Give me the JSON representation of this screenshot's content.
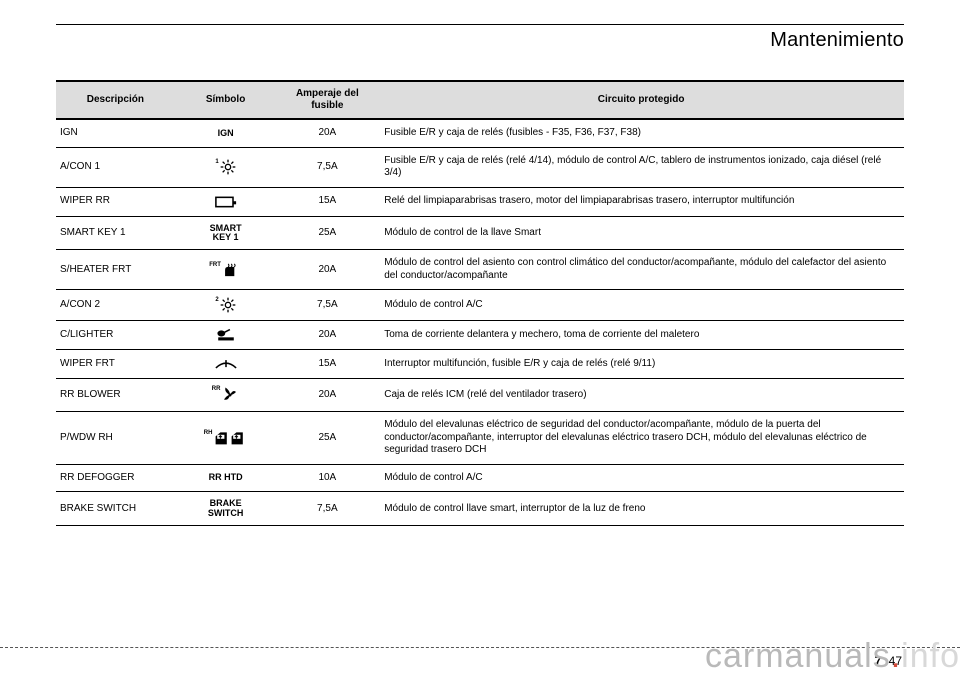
{
  "section_title": "Mantenimiento",
  "table": {
    "headers": {
      "desc": "Descripción",
      "sym": "Símbolo",
      "amp": "Amperaje del fusible",
      "circ": "Circuito protegido"
    },
    "rows": [
      {
        "desc": "IGN",
        "sym_type": "text",
        "sym": "IGN",
        "amp": "20A",
        "circ": "Fusible E/R y caja de relés (fusibles - F35, F36, F37, F38)"
      },
      {
        "desc": "A/CON 1",
        "sym_type": "svg",
        "sym": "sun1",
        "amp": "7,5A",
        "circ": "Fusible E/R y caja de relés (relé 4/14), módulo de control A/C, tablero de instrumentos ionizado, caja diésel (relé 3/4)"
      },
      {
        "desc": "WIPER RR",
        "sym_type": "svg",
        "sym": "rect",
        "amp": "15A",
        "circ": "Relé del limpiaparabrisas trasero, motor del limpiaparabrisas trasero, interruptor multifunción"
      },
      {
        "desc": "SMART KEY 1",
        "sym_type": "text",
        "sym": "SMART\nKEY 1",
        "amp": "25A",
        "circ": "Módulo de control de la llave Smart"
      },
      {
        "desc": "S/HEATER FRT",
        "sym_type": "svg",
        "sym": "seatheat",
        "amp": "20A",
        "circ": "Módulo de control del asiento con control climático del conductor/acompañante, módulo del calefactor del asiento del conductor/acompañante"
      },
      {
        "desc": "A/CON 2",
        "sym_type": "svg",
        "sym": "sun2",
        "amp": "7,5A",
        "circ": "Módulo de control A/C"
      },
      {
        "desc": "C/LIGHTER",
        "sym_type": "svg",
        "sym": "lighter",
        "amp": "20A",
        "circ": "Toma de corriente delantera y mechero, toma de corriente del maletero"
      },
      {
        "desc": "WIPER FRT",
        "sym_type": "svg",
        "sym": "wiper",
        "amp": "15A",
        "circ": "Interruptor multifunción, fusible E/R y caja de relés (relé 9/11)"
      },
      {
        "desc": "RR BLOWER",
        "sym_type": "svg",
        "sym": "fan",
        "amp": "20A",
        "circ": "Caja de relés ICM (relé del ventilador trasero)"
      },
      {
        "desc": "P/WDW RH",
        "sym_type": "svg",
        "sym": "windows",
        "amp": "25A",
        "circ": "Módulo del elevalunas eléctrico de seguridad del conductor/acompañante, módulo de la puerta del conductor/acompañante, interruptor del elevalunas eléctrico trasero DCH, módulo del elevalunas eléctrico de seguridad trasero DCH"
      },
      {
        "desc": "RR DEFOGGER",
        "sym_type": "text",
        "sym": "RR HTD",
        "amp": "10A",
        "circ": "Módulo de control A/C"
      },
      {
        "desc": "BRAKE SWITCH",
        "sym_type": "text",
        "sym": "BRAKE\nSWITCH",
        "amp": "7,5A",
        "circ": "Módulo de control llave smart, interruptor de la luz de freno"
      }
    ],
    "header_bg": "#dddddd",
    "border_color": "#000000",
    "font_size_body": 10,
    "font_size_header": 10
  },
  "page_number": {
    "chapter": "7",
    "page": "47"
  },
  "watermark": {
    "left": "carmanuals",
    "dot": ".",
    "right": "info"
  }
}
